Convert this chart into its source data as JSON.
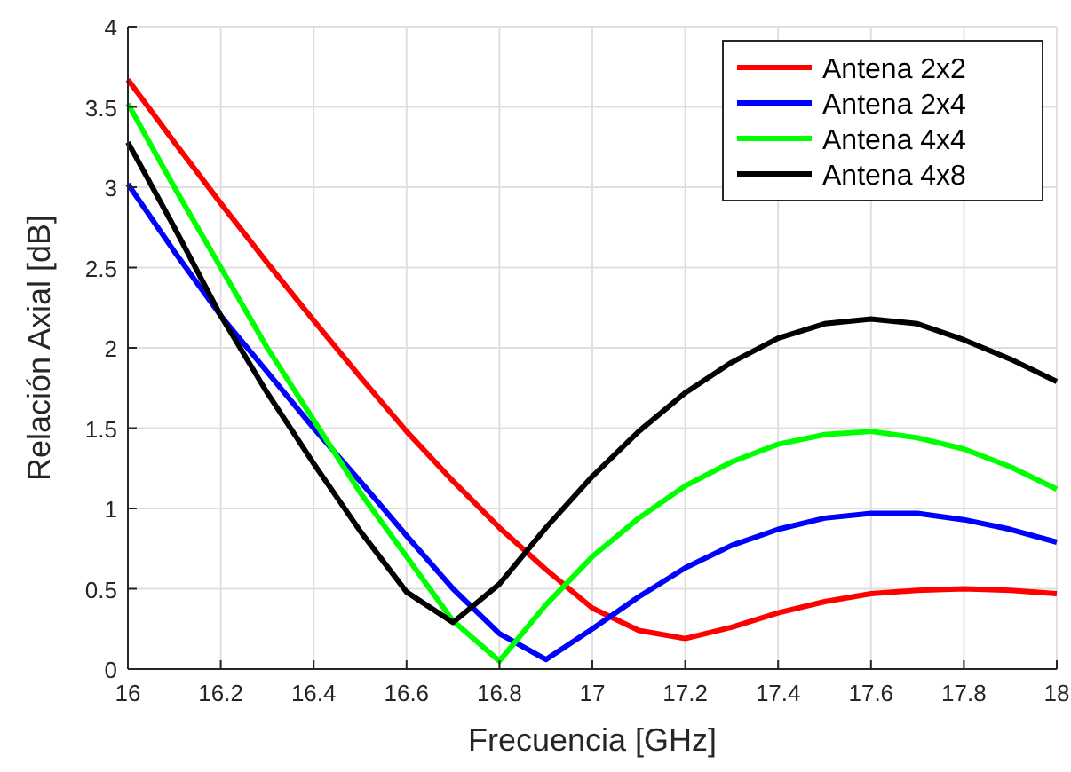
{
  "chart_data": {
    "type": "line",
    "xlabel": "Frecuencia [GHz]",
    "ylabel": "Relación Axial [dB]",
    "x": [
      16,
      16.1,
      16.2,
      16.3,
      16.4,
      16.5,
      16.6,
      16.7,
      16.8,
      16.9,
      17,
      17.1,
      17.2,
      17.3,
      17.4,
      17.5,
      17.6,
      17.7,
      17.8,
      17.9,
      18
    ],
    "series": [
      {
        "name": "Antena 2x2",
        "color": "#ff0000",
        "values": [
          3.67,
          3.28,
          2.9,
          2.53,
          2.17,
          1.82,
          1.48,
          1.17,
          0.88,
          0.62,
          0.38,
          0.24,
          0.19,
          0.26,
          0.35,
          0.42,
          0.47,
          0.49,
          0.5,
          0.49,
          0.47
        ]
      },
      {
        "name": "Antena 2x4",
        "color": "#0000ff",
        "values": [
          3.02,
          2.6,
          2.2,
          1.85,
          1.5,
          1.17,
          0.83,
          0.5,
          0.22,
          0.06,
          0.25,
          0.45,
          0.63,
          0.77,
          0.87,
          0.94,
          0.97,
          0.97,
          0.93,
          0.87,
          0.79
        ]
      },
      {
        "name": "Antena 4x4",
        "color": "#00ff00",
        "values": [
          3.52,
          3.0,
          2.5,
          2.0,
          1.55,
          1.1,
          0.7,
          0.3,
          0.05,
          0.4,
          0.7,
          0.94,
          1.14,
          1.29,
          1.4,
          1.46,
          1.48,
          1.44,
          1.37,
          1.26,
          1.12
        ]
      },
      {
        "name": "Antena 4x8",
        "color": "#000000",
        "values": [
          3.28,
          2.75,
          2.2,
          1.72,
          1.28,
          0.86,
          0.48,
          0.29,
          0.53,
          0.88,
          1.2,
          1.48,
          1.72,
          1.91,
          2.06,
          2.15,
          2.18,
          2.15,
          2.05,
          1.93,
          1.79
        ]
      }
    ],
    "xlim": [
      16,
      18
    ],
    "xticks": [
      16,
      16.2,
      16.4,
      16.6,
      16.8,
      17,
      17.2,
      17.4,
      17.6,
      17.8,
      18
    ],
    "ylim": [
      0,
      4
    ],
    "yticks": [
      0,
      0.5,
      1,
      1.5,
      2,
      2.5,
      3,
      3.5,
      4
    ],
    "grid": true,
    "legend": "top right",
    "marker": "none",
    "line_style": "solid"
  }
}
